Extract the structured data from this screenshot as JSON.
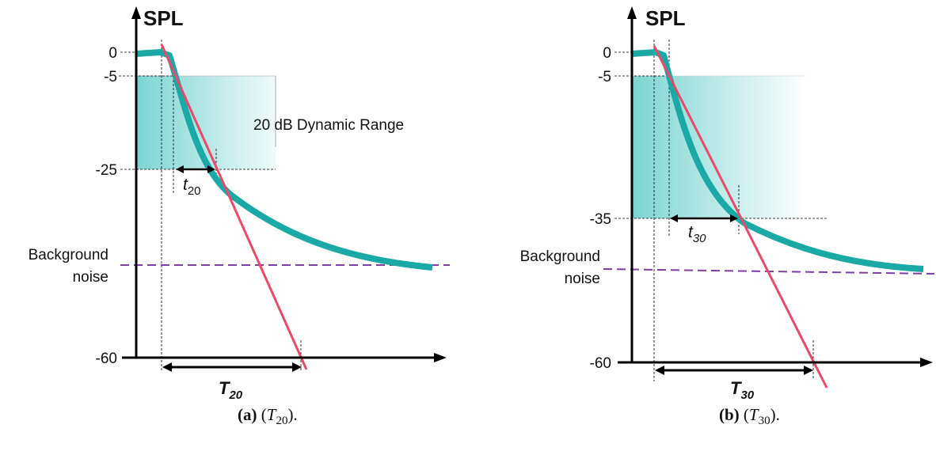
{
  "panels": [
    {
      "id": "a",
      "y_title": "SPL",
      "ticks": {
        "t0": "0",
        "t5": "-5",
        "tmid": "-25",
        "t60": "-60"
      },
      "dynamic_range_label": "20 dB Dynamic Range",
      "noise_label_line1": "Background",
      "noise_label_line2": "noise",
      "small_t": {
        "base": "t",
        "sub": "20"
      },
      "big_T": {
        "base": "T",
        "sub": "20"
      },
      "caption": {
        "tag": "(a)",
        "open": "(",
        "sym": "T",
        "sub": "20",
        "close": ")."
      }
    },
    {
      "id": "b",
      "y_title": "SPL",
      "ticks": {
        "t0": "0",
        "t5": "-5",
        "tmid": "-35",
        "t60": "-60"
      },
      "noise_label_line1": "Background",
      "noise_label_line2": "noise",
      "small_t": {
        "base": "t",
        "sub": "30"
      },
      "big_T": {
        "base": "T",
        "sub": "30"
      },
      "caption": {
        "tag": "(b)",
        "open": "(",
        "sym": "T",
        "sub": "30",
        "close": ")."
      }
    }
  ],
  "colors": {
    "decay_curve": "#1ba9a6",
    "regression_line": "#e84a6a",
    "noise_line": "#7b3fa0",
    "fill_region": "#6cd0cc",
    "axis": "#000000"
  }
}
